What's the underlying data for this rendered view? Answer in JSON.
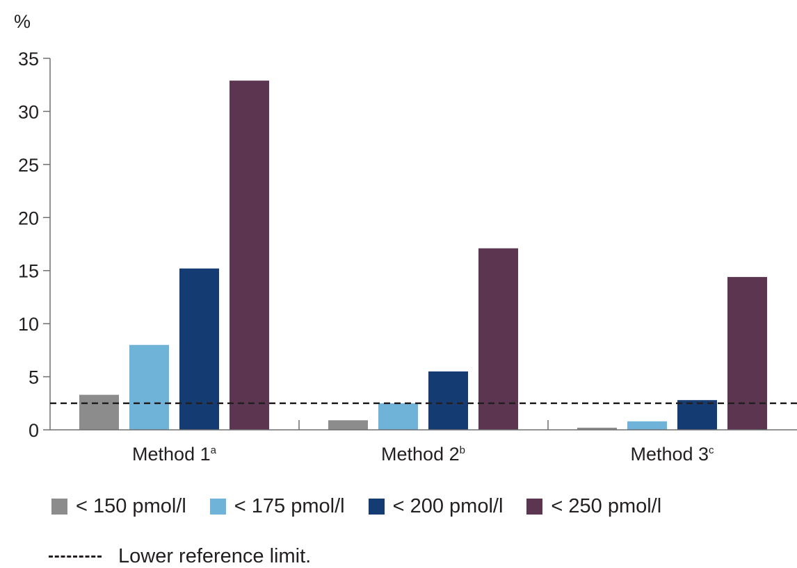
{
  "chart_data": {
    "type": "bar",
    "ylabel": "%",
    "ylim": [
      0,
      35
    ],
    "yticks": [
      0,
      5,
      10,
      15,
      20,
      25,
      30,
      35
    ],
    "categories": [
      {
        "label": "Method 1",
        "sup": "a"
      },
      {
        "label": "Method 2",
        "sup": "b"
      },
      {
        "label": "Method 3",
        "sup": "c"
      }
    ],
    "series": [
      {
        "name": "< 150 pmol/l",
        "color": "#8c8c8c",
        "values": [
          3.3,
          0.9,
          0.2
        ]
      },
      {
        "name": "< 175 pmol/l",
        "color": "#6fb3d8",
        "values": [
          8.0,
          2.5,
          0.8
        ]
      },
      {
        "name": "< 200 pmol/l",
        "color": "#143c73",
        "values": [
          15.2,
          5.5,
          2.8
        ]
      },
      {
        "name": "< 250 pmol/l",
        "color": "#5c3551",
        "values": [
          32.9,
          17.1,
          14.4
        ]
      }
    ],
    "reference_line": {
      "value": 2.5,
      "label": "Lower reference limit."
    },
    "grid": false,
    "legend_position": "bottom"
  }
}
